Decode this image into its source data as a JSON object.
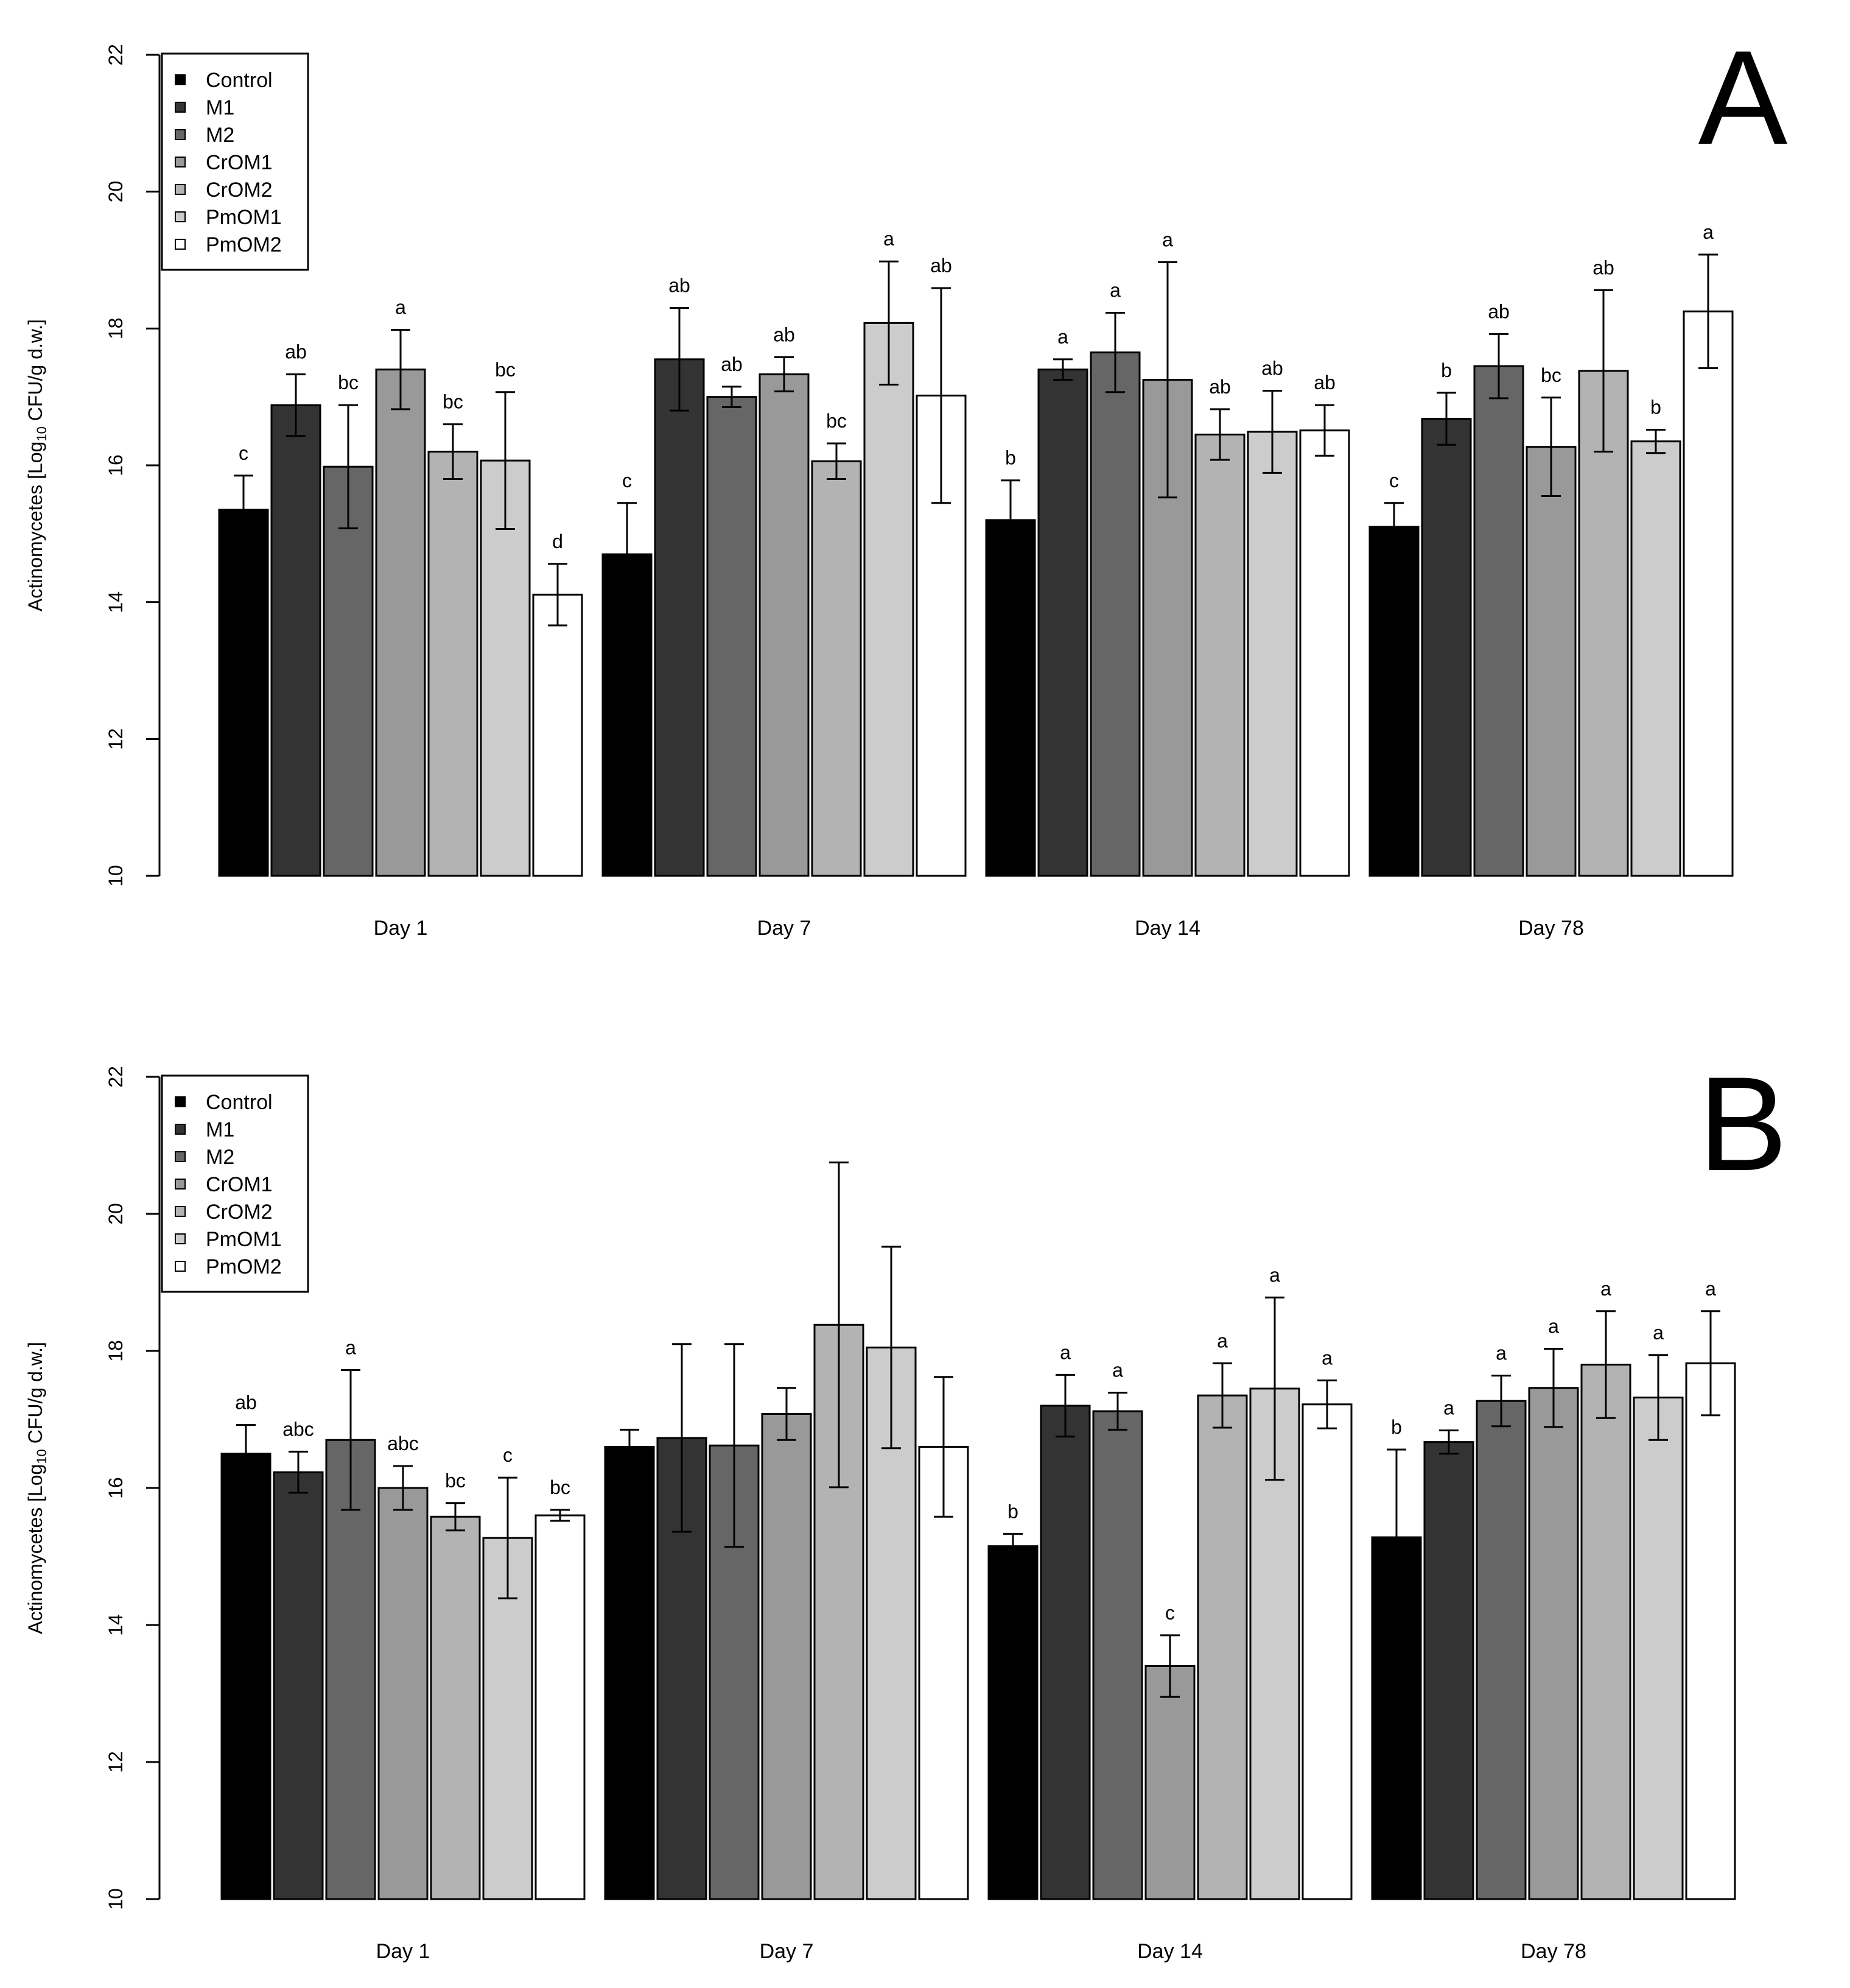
{
  "colors": [
    "#000000",
    "#333333",
    "#666666",
    "#999999",
    "#b3b3b3",
    "#cccccc",
    "#ffffff"
  ],
  "chart_data": [
    {
      "panel": "A",
      "type": "bar",
      "categories": [
        "Day 1",
        "Day 7",
        "Day 14",
        "Day 78"
      ],
      "ylabel": {
        "pre": "Actinomycetes [Log",
        "sub": "10",
        "post": " CFU/g d.w.]"
      },
      "ylim": [
        10,
        22
      ],
      "yticks": [
        "10",
        "12",
        "14",
        "16",
        "18",
        "20",
        "22"
      ],
      "legend_position": "top-left",
      "series": [
        {
          "name": "Control",
          "values": [
            15.35,
            14.7,
            15.2,
            15.1
          ],
          "errors": [
            0.5,
            0.75,
            0.58,
            0.35
          ],
          "labels": [
            "c",
            "c",
            "b",
            "c"
          ]
        },
        {
          "name": "M1",
          "values": [
            16.88,
            17.55,
            17.4,
            16.68
          ],
          "errors": [
            0.45,
            0.75,
            0.15,
            0.38
          ],
          "labels": [
            "ab",
            "ab",
            "a",
            "b"
          ]
        },
        {
          "name": "M2",
          "values": [
            15.98,
            17.0,
            17.65,
            17.45
          ],
          "errors": [
            0.9,
            0.15,
            0.58,
            0.47
          ],
          "labels": [
            "bc",
            "ab",
            "a",
            "ab"
          ]
        },
        {
          "name": "CrOM1",
          "values": [
            17.4,
            17.33,
            17.25,
            16.27
          ],
          "errors": [
            0.58,
            0.25,
            1.72,
            0.72
          ],
          "labels": [
            "a",
            "ab",
            "a",
            "bc"
          ]
        },
        {
          "name": "CrOM2",
          "values": [
            16.2,
            16.06,
            16.45,
            17.38
          ],
          "errors": [
            0.4,
            0.26,
            0.37,
            1.18
          ],
          "labels": [
            "bc",
            "bc",
            "ab",
            "ab"
          ]
        },
        {
          "name": "PmOM1",
          "values": [
            16.07,
            18.08,
            16.49,
            16.35
          ],
          "errors": [
            1.0,
            0.9,
            0.6,
            0.17
          ],
          "labels": [
            "bc",
            "a",
            "ab",
            "b"
          ]
        },
        {
          "name": "PmOM2",
          "values": [
            14.11,
            17.02,
            16.51,
            18.25
          ],
          "errors": [
            0.45,
            1.57,
            0.37,
            0.83
          ],
          "labels": [
            "d",
            "ab",
            "ab",
            "a"
          ]
        }
      ]
    },
    {
      "panel": "B",
      "type": "bar",
      "categories": [
        "Day 1",
        "Day 7",
        "Day 14",
        "Day 78"
      ],
      "ylabel": {
        "pre": "Actinomycetes [Log",
        "sub": "10",
        "post": " CFU/g d.w.]"
      },
      "ylim": [
        10,
        22
      ],
      "yticks": [
        "10",
        "12",
        "14",
        "16",
        "18",
        "20",
        "22"
      ],
      "legend_position": "top-left",
      "series": [
        {
          "name": "Control",
          "values": [
            16.5,
            16.6,
            15.15,
            15.28
          ],
          "errors": [
            0.42,
            0.25,
            0.18,
            1.28
          ],
          "labels": [
            "ab",
            "",
            "b",
            "b"
          ]
        },
        {
          "name": "M1",
          "values": [
            16.23,
            16.73,
            17.2,
            16.67
          ],
          "errors": [
            0.3,
            1.37,
            0.45,
            0.17
          ],
          "labels": [
            "abc",
            "",
            "a",
            "a"
          ]
        },
        {
          "name": "M2",
          "values": [
            16.7,
            16.62,
            17.12,
            17.27
          ],
          "errors": [
            1.02,
            1.48,
            0.27,
            0.37
          ],
          "labels": [
            "a",
            "",
            "a",
            "a"
          ]
        },
        {
          "name": "CrOM1",
          "values": [
            16.0,
            17.08,
            13.4,
            17.46
          ],
          "errors": [
            0.32,
            0.38,
            0.45,
            0.57
          ],
          "labels": [
            "abc",
            "",
            "c",
            "a"
          ]
        },
        {
          "name": "CrOM2",
          "values": [
            15.58,
            18.38,
            17.35,
            17.8
          ],
          "errors": [
            0.2,
            2.37,
            0.47,
            0.78
          ],
          "labels": [
            "bc",
            "",
            "a",
            "a"
          ]
        },
        {
          "name": "PmOM1",
          "values": [
            15.27,
            18.05,
            17.45,
            17.32
          ],
          "errors": [
            0.88,
            1.47,
            1.33,
            0.62
          ],
          "labels": [
            "c",
            "",
            "a",
            "a"
          ]
        },
        {
          "name": "PmOM2",
          "values": [
            15.6,
            16.6,
            17.22,
            17.82
          ],
          "errors": [
            0.08,
            1.02,
            0.35,
            0.76
          ],
          "labels": [
            "bc",
            "",
            "a",
            "a"
          ]
        }
      ]
    }
  ]
}
